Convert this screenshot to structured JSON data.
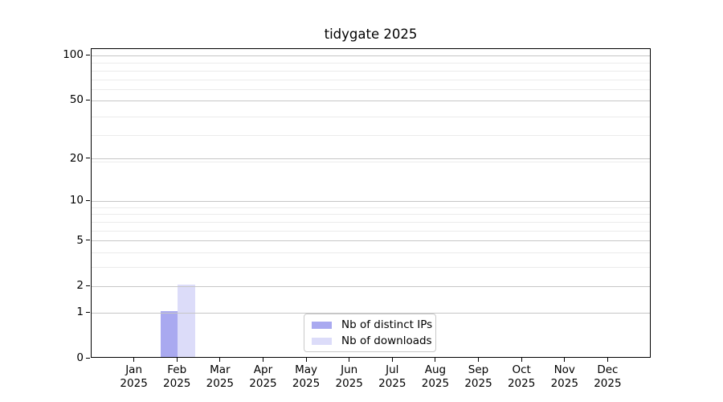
{
  "chart_data": {
    "type": "bar",
    "title": "tidygate 2025",
    "categories": [
      "Jan",
      "Feb",
      "Mar",
      "Apr",
      "May",
      "Jun",
      "Jul",
      "Aug",
      "Sep",
      "Oct",
      "Nov",
      "Dec"
    ],
    "x_year_label": "2025",
    "series": [
      {
        "name": "Nb of distinct IPs",
        "color": "#a9a9f0",
        "values": [
          0,
          1,
          0,
          0,
          0,
          0,
          0,
          0,
          0,
          0,
          0,
          0
        ]
      },
      {
        "name": "Nb of downloads",
        "color": "#dcdcf9",
        "values": [
          0,
          2,
          0,
          0,
          0,
          0,
          0,
          0,
          0,
          0,
          0,
          0
        ]
      }
    ],
    "y_scale": "log10(value+1)",
    "y_ticks": [
      0,
      1,
      2,
      5,
      10,
      20,
      50,
      100
    ],
    "y_minor_gridlines": [
      3,
      4,
      6,
      7,
      8,
      9,
      19,
      29,
      39,
      59,
      69,
      79,
      89
    ],
    "ylim": [
      0,
      111
    ],
    "xlabel": "",
    "ylabel": "",
    "grid": "horizontal",
    "legend": {
      "position": "lower center"
    },
    "colors": {
      "major_grid": "#c6c6c6",
      "minor_grid": "#ebebeb",
      "axis": "#000000",
      "text": "#000000",
      "background": "#ffffff"
    }
  }
}
